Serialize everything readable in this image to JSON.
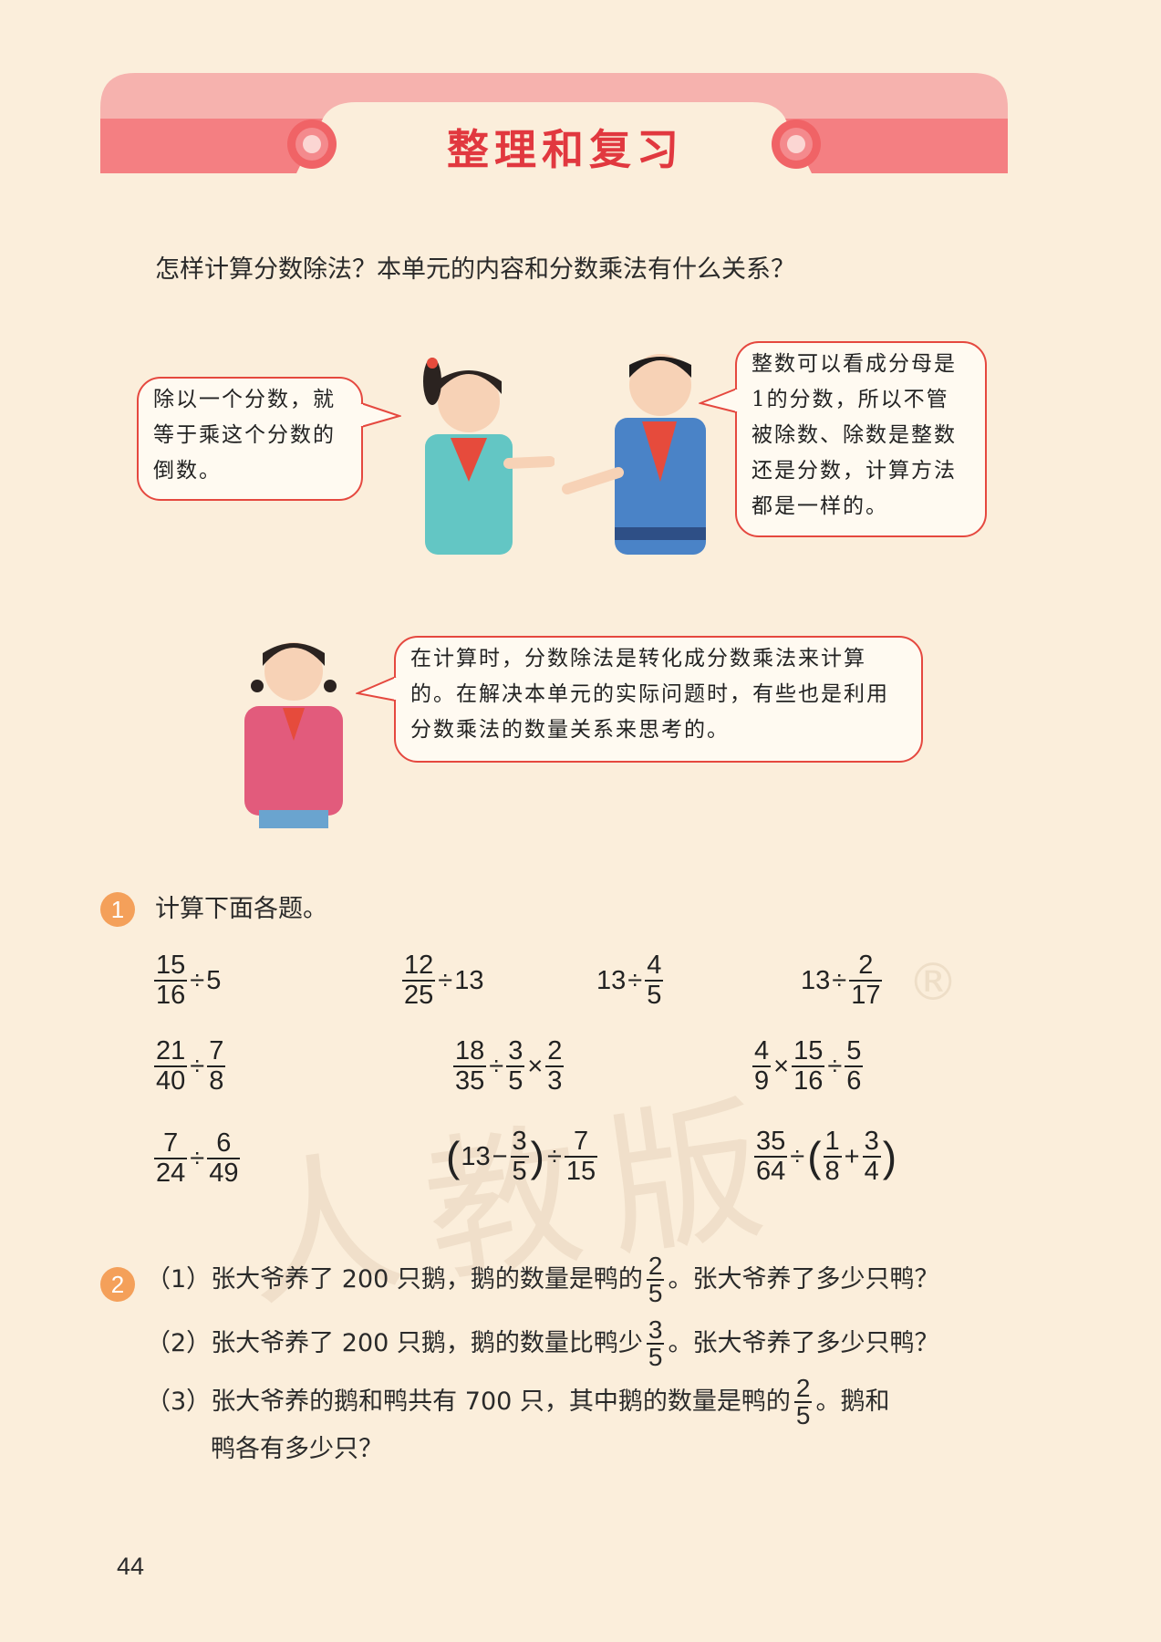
{
  "header": {
    "title": "整理和复习"
  },
  "intro_question": "怎样计算分数除法？本单元的内容和分数乘法有什么关系？",
  "bubbles": {
    "girl1": "除以一个分数，就等于乘这个分数的倒数。",
    "boy": "整数可以看成分母是1的分数，所以不管被除数、除数是整数还是分数，计算方法都是一样的。",
    "girl2": "在计算时，分数除法是转化成分数乘法来计算的。在解决本单元的实际问题时，有些也是利用分数乘法的数量关系来思考的。"
  },
  "exercise1": {
    "number": "1",
    "prompt": "计算下面各题。",
    "items": [
      "15/16 ÷ 5",
      "12/25 ÷ 13",
      "13 ÷ 4/5",
      "13 ÷ 2/17",
      "21/40 ÷ 7/8",
      "18/35 ÷ 3/5 × 2/3",
      "4/9 × 15/16 ÷ 5/6",
      "7/24 ÷ 6/49",
      "(13 − 3/5) ÷ 7/15",
      "35/64 ÷ (1/8 + 3/4)"
    ],
    "symbols": {
      "div": "÷",
      "mul": "×",
      "minus": "−",
      "plus": "+",
      "lparen": "(",
      "rparen": ")"
    }
  },
  "exercise2": {
    "number": "2",
    "problems": [
      {
        "label": "（1）",
        "before": "张大爷养了 200 只鹅，鹅的数量是鸭的",
        "frac_n": "2",
        "frac_d": "5",
        "after": "。张大爷养了多少只鸭？"
      },
      {
        "label": "（2）",
        "before": "张大爷养了 200 只鹅，鹅的数量比鸭少",
        "frac_n": "3",
        "frac_d": "5",
        "after": "。张大爷养了多少只鸭？"
      },
      {
        "label": "（3）",
        "before": "张大爷养的鹅和鸭共有 700 只，其中鹅的数量是鸭的",
        "frac_n": "2",
        "frac_d": "5",
        "after": "。鹅和",
        "line2": "鸭各有多少只？"
      }
    ]
  },
  "watermark": "人教版",
  "watermark_mark": "®",
  "page_number": "44",
  "colors": {
    "title": "#e1383f",
    "banner": "#f47f82",
    "badge": "#f4a05a",
    "bubble_border": "#e5483f",
    "background": "#fbeedb"
  }
}
